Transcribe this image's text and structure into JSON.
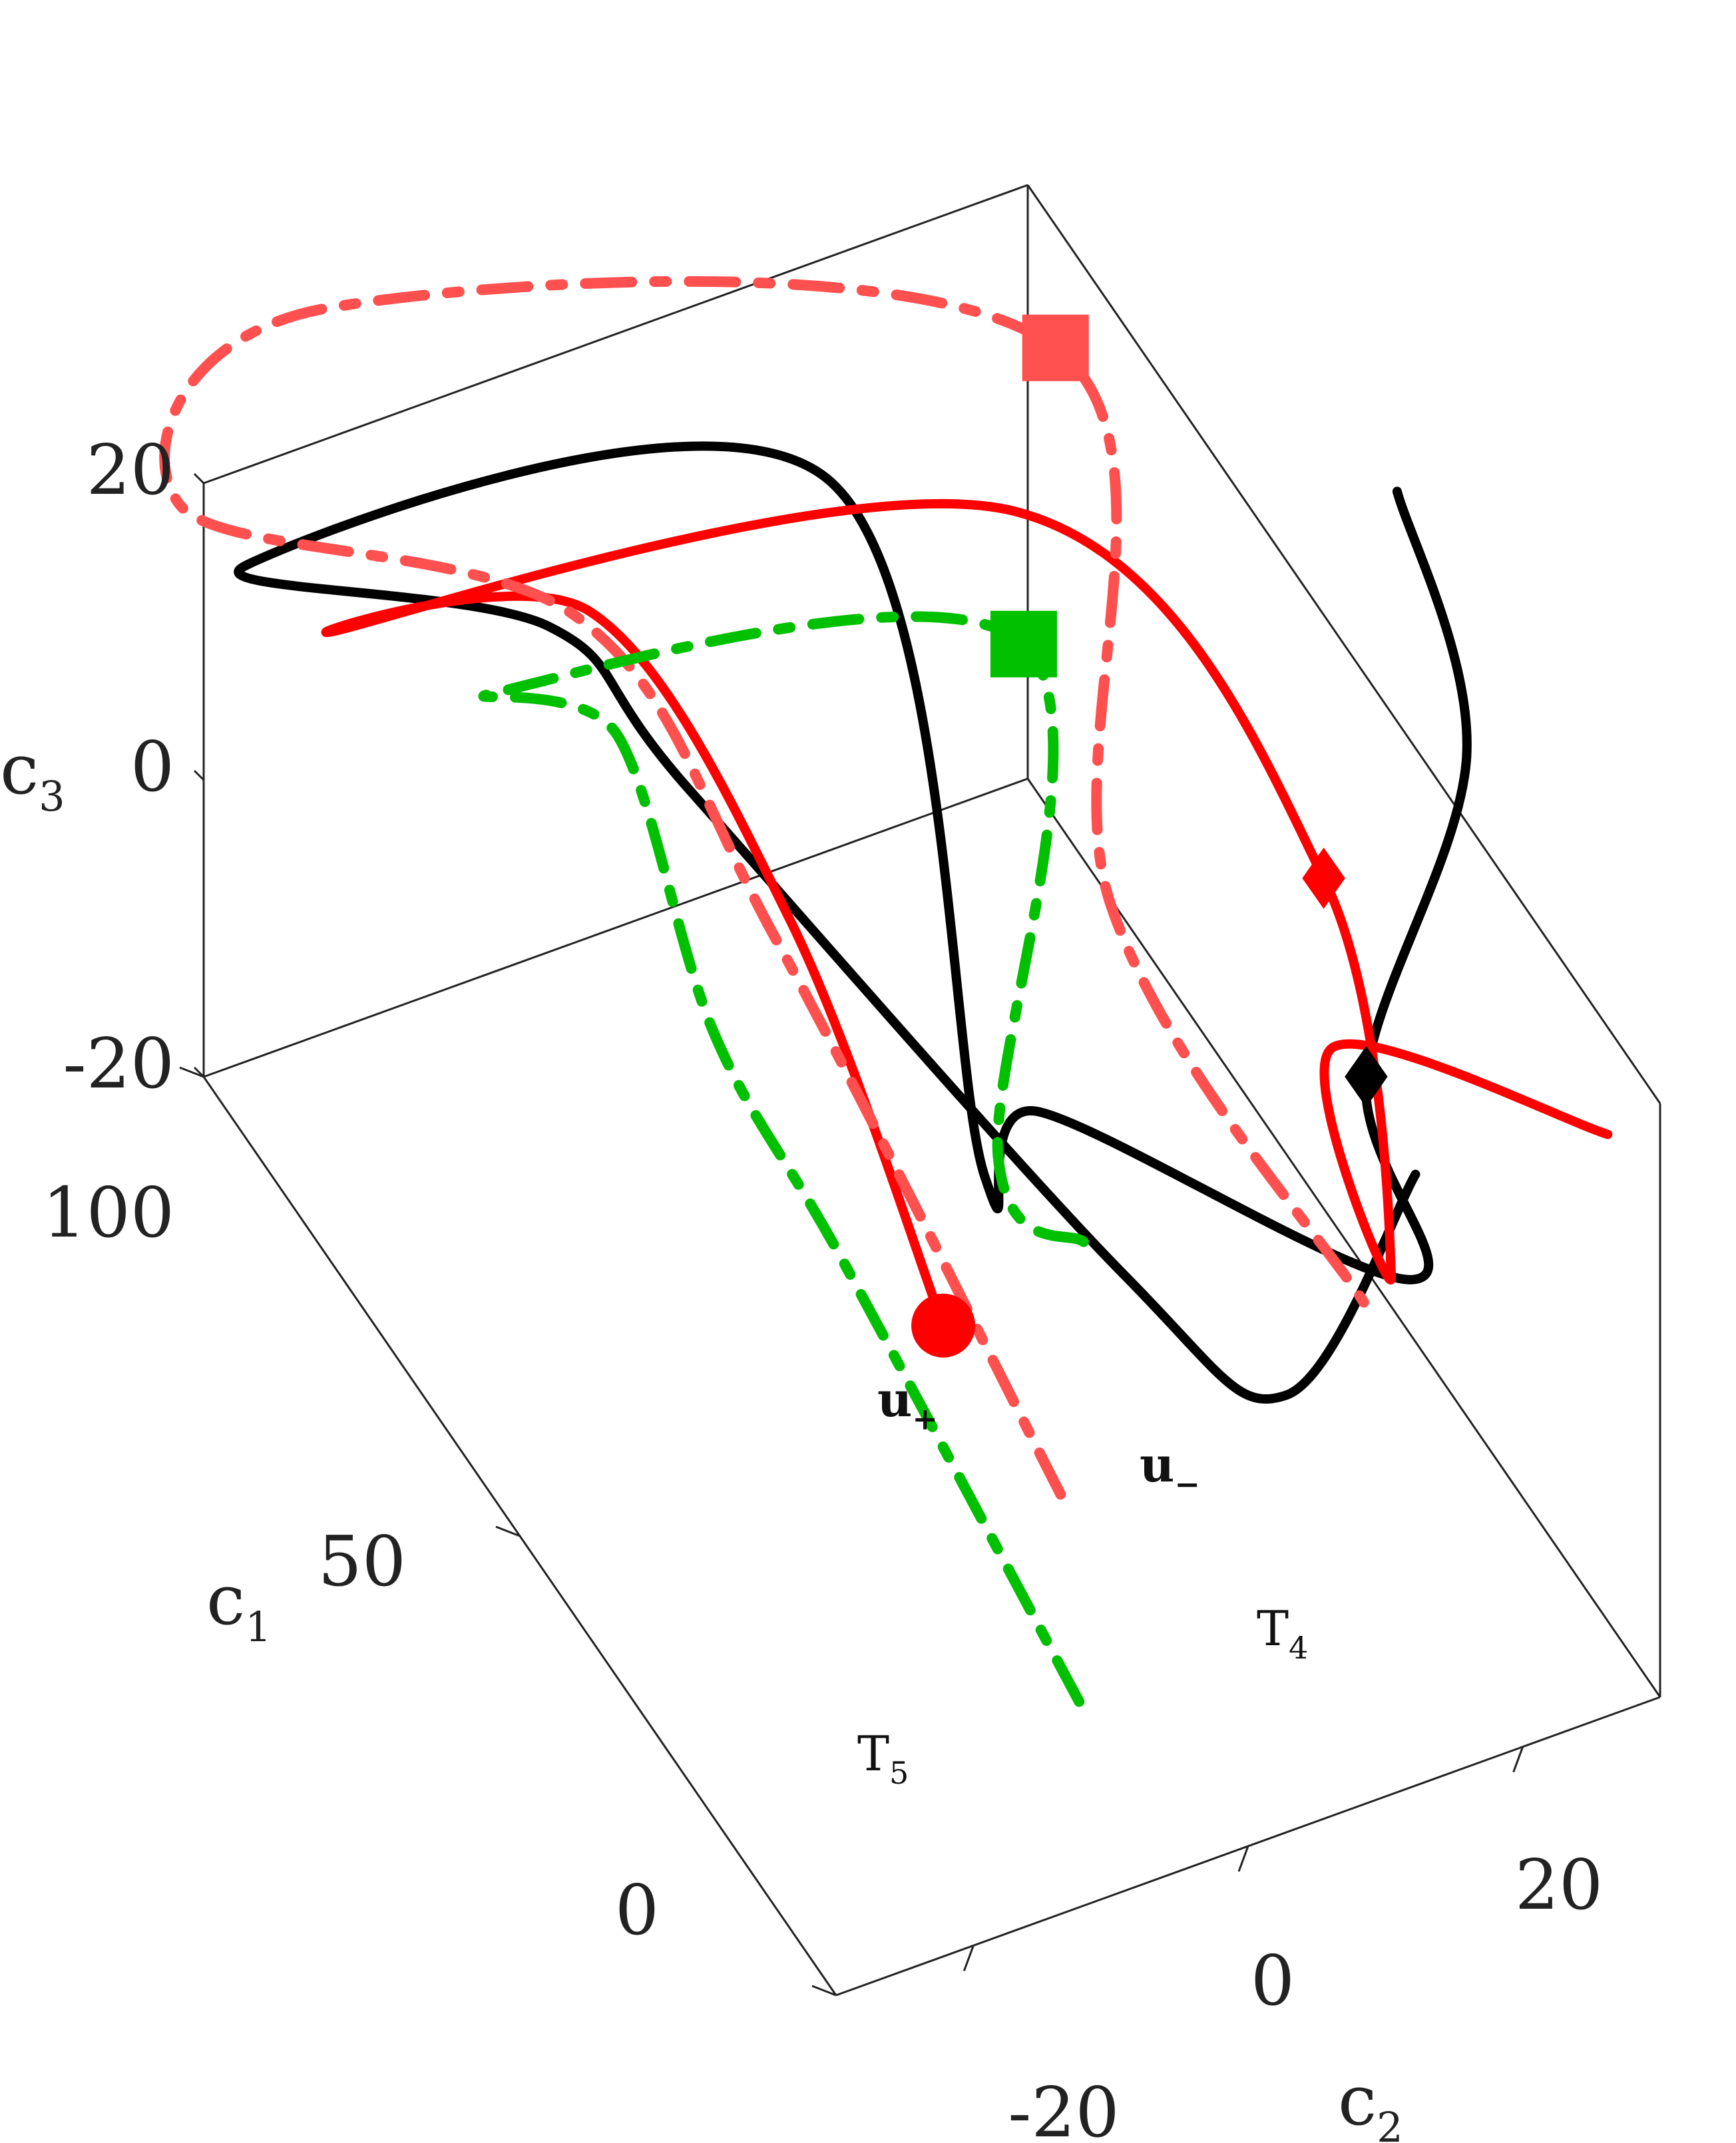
{
  "chart_data": {
    "type": "line",
    "projection": "3d",
    "title": "",
    "axes": {
      "c1": {
        "label": "c",
        "label_sub": "1",
        "ticks": [
          0,
          50,
          100
        ],
        "tick_labels": [
          "0",
          "50",
          "100"
        ]
      },
      "c2": {
        "label": "c",
        "label_sub": "2",
        "ticks": [
          -20,
          0,
          20
        ],
        "tick_labels": [
          "-20",
          "0",
          "20"
        ]
      },
      "c3": {
        "label": "c",
        "label_sub": "3",
        "ticks": [
          -20,
          0,
          20
        ],
        "tick_labels": [
          "-20",
          "0",
          "20"
        ]
      }
    },
    "grid": false,
    "legend": "none",
    "colors": {
      "red": "#ff0000",
      "light_red": "#ff5050",
      "green": "#00c000",
      "black": "#000000",
      "axes": "#222222"
    },
    "annotations": [
      {
        "id": "u_plus",
        "text": "u",
        "sub": "+",
        "bold": true
      },
      {
        "id": "u_minus",
        "text": "u",
        "sub": "−",
        "bold": true
      },
      {
        "id": "T4",
        "text": "T",
        "sub": "4",
        "bold": false
      },
      {
        "id": "T5",
        "text": "T",
        "sub": "5",
        "bold": false
      }
    ],
    "series": [
      {
        "id": "T4",
        "color": "#000000",
        "style": "solid",
        "points": [
          [
            30,
            26,
            -2
          ],
          [
            20,
            12,
            -6
          ],
          [
            24,
            2,
            3
          ],
          [
            58,
            -14,
            20
          ],
          [
            65,
            -21,
            29
          ],
          [
            85,
            -34,
            25
          ],
          [
            60,
            -3,
            36
          ],
          [
            46,
            2,
            -4
          ],
          [
            46,
            6,
            -1
          ],
          [
            39,
            30,
            -16
          ],
          [
            53,
            33,
            -12
          ],
          [
            61,
            44,
            1
          ],
          [
            72,
            44,
            12
          ]
        ],
        "markers": [
          {
            "at": 10,
            "shape": "diamond"
          }
        ]
      },
      {
        "id": "u_plus_solid",
        "color": "#ff0000",
        "style": "solid",
        "points": [
          [
            33,
            -7,
            -3
          ],
          [
            55,
            -8,
            11
          ],
          [
            65,
            -18,
            29
          ],
          [
            70,
            -34,
            30
          ],
          [
            50,
            6,
            37
          ],
          [
            38,
            23,
            14
          ],
          [
            36,
            27,
            -13
          ],
          [
            54,
            31,
            -10
          ],
          [
            30,
            40,
            -4
          ]
        ],
        "markers": [
          {
            "at": 0,
            "shape": "circle"
          },
          {
            "at": 5,
            "shape": "diamond"
          }
        ]
      },
      {
        "id": "u_minus_dashed",
        "color": "#ff5050",
        "style": "dash-dot",
        "points": [
          [
            34,
            2,
            -18
          ],
          [
            55,
            -9,
            10
          ],
          [
            65,
            -19,
            29
          ],
          [
            82,
            -40,
            33
          ],
          [
            70,
            -35,
            52
          ],
          [
            50,
            9,
            47
          ],
          [
            48,
            12,
            10
          ],
          [
            36,
            25,
            -14
          ]
        ],
        "markers": [
          {
            "at": 5,
            "shape": "square"
          }
        ]
      },
      {
        "id": "T5",
        "color": "#00c000",
        "style": "dash-dot",
        "points": [
          [
            5,
            -10,
            -10
          ],
          [
            25,
            -18,
            10
          ],
          [
            54,
            -14,
            6
          ],
          [
            65,
            -16,
            20
          ],
          [
            66,
            -24,
            25
          ],
          [
            42,
            3,
            34
          ],
          [
            33,
            -3,
            7
          ],
          [
            28,
            1,
            3
          ]
        ],
        "markers": [
          {
            "at": 5,
            "shape": "square"
          }
        ]
      }
    ]
  }
}
